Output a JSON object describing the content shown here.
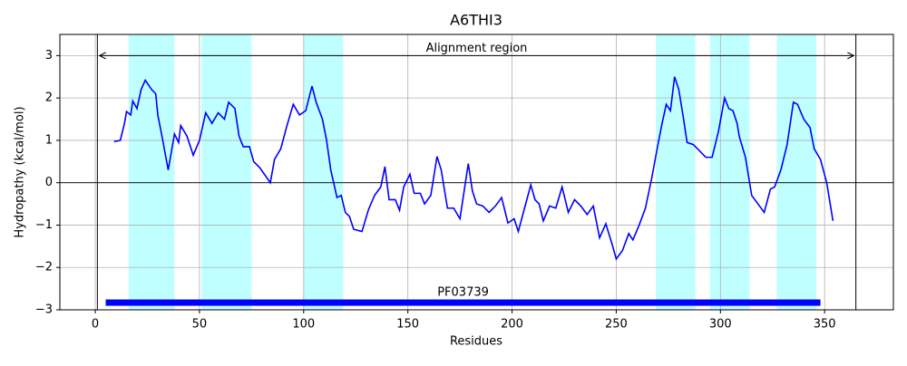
{
  "chart_data": {
    "type": "line",
    "title": "A6THI3",
    "xlabel": "Residues",
    "ylabel": "Hydropathy (kcal/mol)",
    "x": [
      9,
      12,
      14,
      15,
      17,
      18,
      20,
      22,
      24,
      27,
      29,
      30,
      32,
      35,
      38,
      40,
      41,
      44,
      47,
      50,
      53,
      56,
      59,
      62,
      64,
      67,
      69,
      71,
      74,
      76,
      79,
      84,
      86,
      89,
      92,
      95,
      98,
      101,
      104,
      106,
      109,
      111,
      113,
      116,
      118,
      120,
      122,
      124,
      128,
      131,
      134,
      137,
      139,
      141,
      144,
      146,
      148,
      151,
      153,
      156,
      158,
      161,
      164,
      166,
      169,
      172,
      175,
      177,
      179,
      181,
      183,
      186,
      189,
      192,
      195,
      198,
      201,
      203,
      206,
      209,
      211,
      213,
      215,
      218,
      221,
      224,
      227,
      230,
      233,
      236,
      239,
      242,
      245,
      248,
      250,
      253,
      256,
      258,
      261,
      264,
      267,
      270,
      272,
      274,
      276,
      278,
      280,
      282,
      284,
      287,
      290,
      293,
      296,
      299,
      302,
      304,
      306,
      308,
      309,
      312,
      315,
      318,
      321,
      324,
      326,
      329,
      332,
      335,
      337,
      340,
      343,
      345,
      348,
      351,
      354
    ],
    "series": [
      {
        "color": "#0000ff",
        "values": [
          0.97,
          1.0,
          1.4,
          1.68,
          1.6,
          1.93,
          1.75,
          2.2,
          2.42,
          2.2,
          2.1,
          1.6,
          1.1,
          0.3,
          1.15,
          0.95,
          1.35,
          1.1,
          0.65,
          1.0,
          1.65,
          1.4,
          1.65,
          1.5,
          1.9,
          1.75,
          1.1,
          0.85,
          0.85,
          0.5,
          0.35,
          0.0,
          0.55,
          0.8,
          1.35,
          1.85,
          1.6,
          1.7,
          2.28,
          1.9,
          1.5,
          1.0,
          0.3,
          -0.35,
          -0.3,
          -0.7,
          -0.8,
          -1.1,
          -1.15,
          -0.65,
          -0.3,
          -0.1,
          0.38,
          -0.4,
          -0.4,
          -0.65,
          -0.1,
          0.2,
          -0.25,
          -0.25,
          -0.5,
          -0.3,
          0.62,
          0.3,
          -0.6,
          -0.6,
          -0.85,
          -0.2,
          0.45,
          -0.2,
          -0.5,
          -0.55,
          -0.7,
          -0.55,
          -0.35,
          -0.95,
          -0.85,
          -1.15,
          -0.6,
          -0.05,
          -0.4,
          -0.5,
          -0.9,
          -0.55,
          -0.6,
          -0.1,
          -0.7,
          -0.4,
          -0.55,
          -0.75,
          -0.55,
          -1.3,
          -0.97,
          -1.45,
          -1.8,
          -1.6,
          -1.2,
          -1.35,
          -1.0,
          -0.6,
          0.1,
          0.9,
          1.4,
          1.85,
          1.7,
          2.5,
          2.2,
          1.6,
          0.95,
          0.9,
          0.75,
          0.6,
          0.6,
          1.2,
          2.0,
          1.75,
          1.7,
          1.4,
          1.1,
          0.6,
          -0.3,
          -0.5,
          -0.7,
          -0.15,
          -0.1,
          0.3,
          0.9,
          1.9,
          1.85,
          1.5,
          1.3,
          0.8,
          0.55,
          0.0,
          -0.9
        ]
      }
    ],
    "xlim": [
      -17,
      383
    ],
    "ylim": [
      -3,
      3.5
    ],
    "xticks": [
      0,
      50,
      100,
      150,
      200,
      250,
      300,
      350
    ],
    "yticks": [
      {
        "value": -3,
        "label": "−3"
      },
      {
        "value": -2,
        "label": "−2"
      },
      {
        "value": -1,
        "label": "−1"
      },
      0,
      1,
      2,
      3
    ],
    "grid": true,
    "hline": 0,
    "spans": [
      [
        16,
        38
      ],
      [
        51,
        75
      ],
      [
        100,
        119
      ],
      [
        269,
        288
      ],
      [
        295,
        314
      ],
      [
        327,
        346
      ]
    ],
    "span_color": "#00ffff",
    "vlines": [
      1,
      365
    ],
    "annotation": {
      "text": "Alignment region",
      "start": 2,
      "end": 364,
      "y": 3
    },
    "domain": {
      "label": "PF03739",
      "start": 5,
      "end": 348,
      "y": -2.83,
      "color": "#0000ff"
    }
  }
}
